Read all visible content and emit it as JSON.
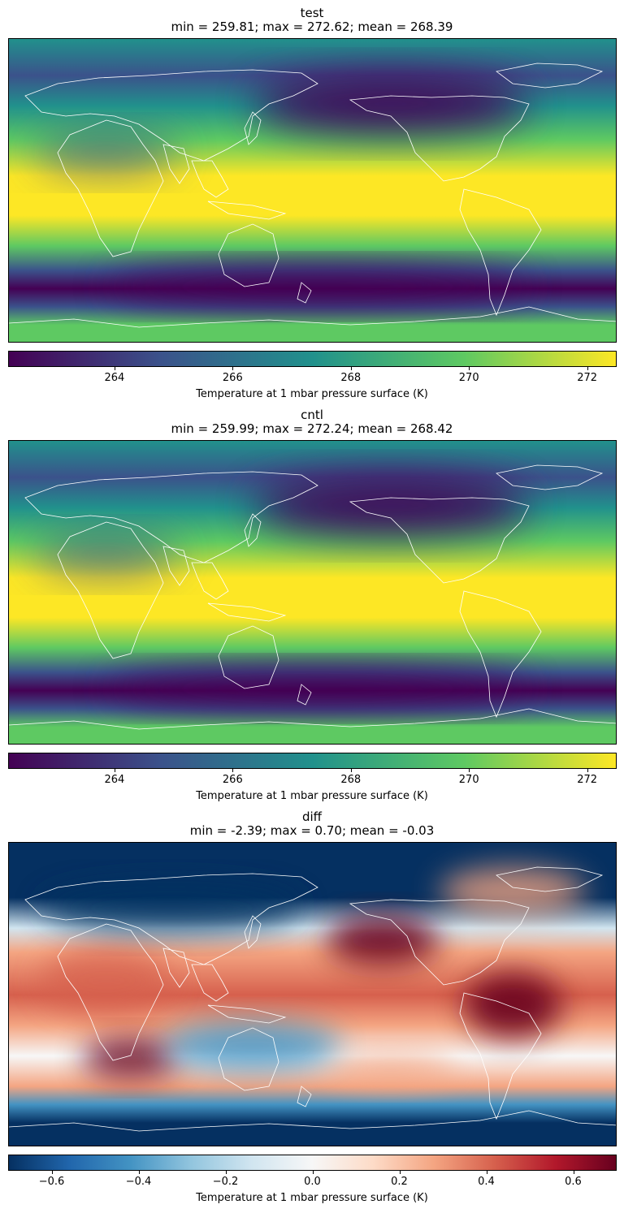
{
  "chart_data": [
    {
      "type": "heatmap",
      "title": "test",
      "subtitle": "min = 259.81; max = 272.62; mean = 268.39",
      "colormap": "viridis",
      "colorbar_label": "Temperature at 1 mbar pressure surface (K)",
      "colorbar_range": [
        262.2,
        272.5
      ],
      "colorbar_ticks": [
        "264",
        "266",
        "268",
        "270",
        "272"
      ],
      "colorbar_tick_values": [
        264,
        266,
        268,
        270,
        272
      ],
      "stats": {
        "min": 259.81,
        "max": 272.62,
        "mean": 268.39
      }
    },
    {
      "type": "heatmap",
      "title": "cntl",
      "subtitle": "min = 259.99; max = 272.24; mean = 268.42",
      "colormap": "viridis",
      "colorbar_label": "Temperature at 1 mbar pressure surface (K)",
      "colorbar_range": [
        262.2,
        272.5
      ],
      "colorbar_ticks": [
        "264",
        "266",
        "268",
        "270",
        "272"
      ],
      "colorbar_tick_values": [
        264,
        266,
        268,
        270,
        272
      ],
      "stats": {
        "min": 259.99,
        "max": 272.24,
        "mean": 268.42
      }
    },
    {
      "type": "heatmap",
      "title": "diff",
      "subtitle": "min = -2.39; max = 0.70; mean = -0.03",
      "colormap": "RdBu_r",
      "colorbar_label": "Temperature at 1 mbar pressure surface (K)",
      "colorbar_range": [
        -0.7,
        0.7
      ],
      "colorbar_ticks": [
        "−0.6",
        "−0.4",
        "−0.2",
        "0.0",
        "0.2",
        "0.4",
        "0.6"
      ],
      "colorbar_tick_values": [
        -0.6,
        -0.4,
        -0.2,
        0.0,
        0.2,
        0.4,
        0.6
      ],
      "stats": {
        "min": -2.39,
        "max": 0.7,
        "mean": -0.03
      }
    }
  ],
  "colors": {
    "viridis": [
      "#440154",
      "#3b528b",
      "#21918c",
      "#5ec962",
      "#fde725"
    ],
    "rdbu_r": [
      "#053061",
      "#2166ac",
      "#4393c3",
      "#92c5de",
      "#d1e5f0",
      "#f7f7f7",
      "#fddbc7",
      "#f4a582",
      "#d6604d",
      "#b2182b",
      "#67001f"
    ],
    "coastline": "#ffffff"
  }
}
